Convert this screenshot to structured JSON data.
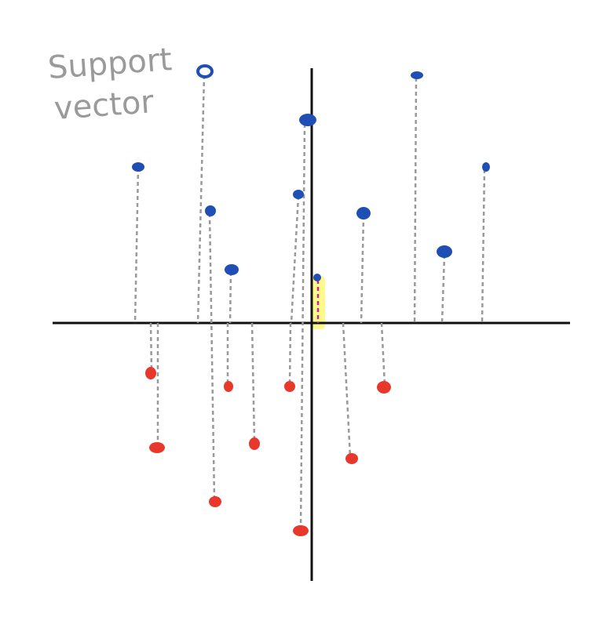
{
  "annotation": {
    "line1": "Support",
    "line2": "vector"
  },
  "colors": {
    "axis": "#111111",
    "positive": "#1f4fb4",
    "negative": "#e8382c",
    "projection": "#999999",
    "support_projection": "#cc2299",
    "highlight": "#fffa8a"
  },
  "icons": {
    "positive_point": "blue-dot",
    "negative_point": "red-dot"
  }
}
